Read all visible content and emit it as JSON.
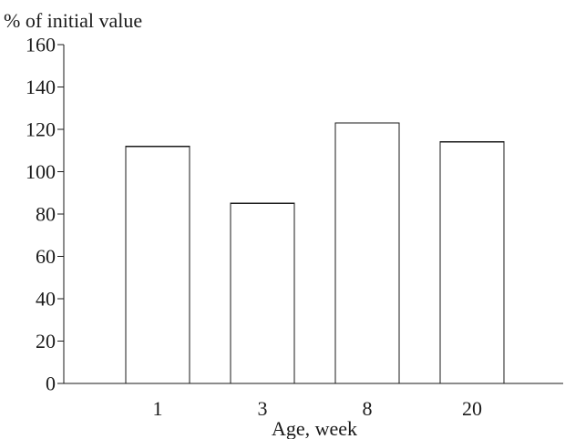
{
  "chart_data": {
    "type": "bar",
    "title": "",
    "ylabel": "% of initial value",
    "xlabel": "Age, week",
    "categories": [
      "1",
      "3",
      "8",
      "20"
    ],
    "values": [
      112,
      85,
      123,
      114
    ],
    "ylim": [
      0,
      160
    ],
    "yticks": [
      0,
      20,
      40,
      60,
      80,
      100,
      120,
      140,
      160
    ],
    "grid": false,
    "legend": "none",
    "colors": {
      "bar_fill": "#ffffff",
      "bar_stroke": "#1a1a1a",
      "axis": "#1a1a1a",
      "text": "#1a1a1a"
    }
  }
}
